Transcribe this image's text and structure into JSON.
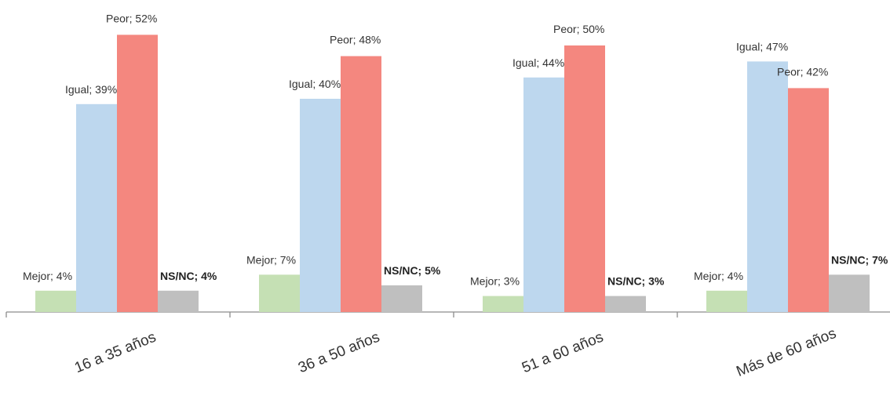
{
  "chart_data": {
    "type": "bar",
    "title": "",
    "xlabel": "",
    "ylabel": "",
    "ylim": [
      0,
      52
    ],
    "grid": false,
    "legend": "none",
    "categories": [
      "16 a 35 años",
      "36 a 50 años",
      "51 a 60 años",
      "Más de 60 años"
    ],
    "series": [
      {
        "name": "Mejor",
        "color": "#c5e0b4",
        "values": [
          4,
          7,
          3,
          4
        ],
        "labels": [
          "Mejor; 4%",
          "Mejor; 7%",
          "Mejor; 3%",
          "Mejor; 4%"
        ]
      },
      {
        "name": "Igual",
        "color": "#bdd7ee",
        "values": [
          39,
          40,
          44,
          47
        ],
        "labels": [
          "Igual; 39%",
          "Igual; 40%",
          "Igual; 44%",
          "Igual; 47%"
        ]
      },
      {
        "name": "Peor",
        "color": "#f4877f",
        "values": [
          52,
          48,
          50,
          42
        ],
        "labels": [
          "Peor; 52%",
          "Peor; 48%",
          "Peor; 50%",
          "Peor; 42%"
        ]
      },
      {
        "name": "NS/NC",
        "color": "#bfbfbf",
        "values": [
          4,
          5,
          3,
          7
        ],
        "labels": [
          "NS/NC; 4%",
          "NS/NC; 5%",
          "NS/NC; 3%",
          "NS/NC; 7%"
        ]
      }
    ]
  }
}
